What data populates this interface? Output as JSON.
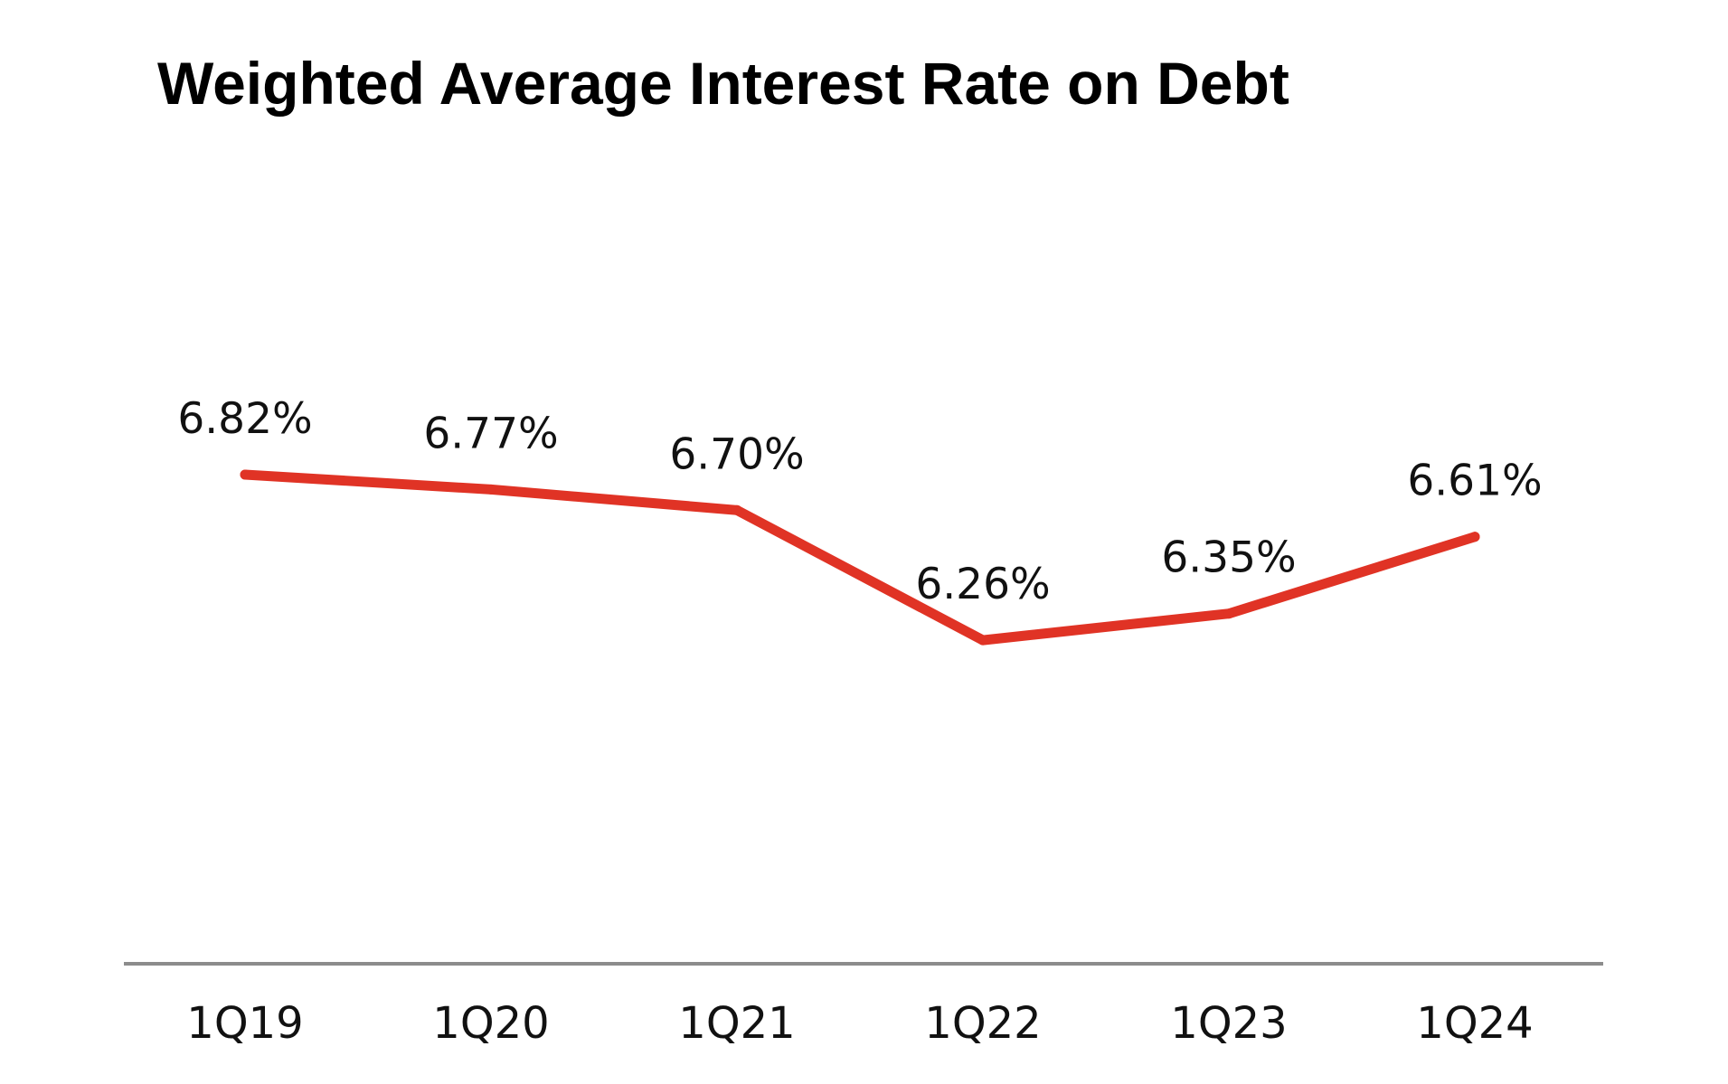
{
  "chart_data": {
    "type": "line",
    "title": "Weighted Average Interest Rate on Debt",
    "xlabel": "",
    "ylabel": "",
    "categories": [
      "1Q19",
      "1Q20",
      "1Q21",
      "1Q22",
      "1Q23",
      "1Q24"
    ],
    "series": [
      {
        "name": "Weighted Average Interest Rate on Debt",
        "values": [
          6.82,
          6.77,
          6.7,
          6.26,
          6.35,
          6.61
        ],
        "labels": [
          "6.82%",
          "6.77%",
          "6.70%",
          "6.26%",
          "6.35%",
          "6.61%"
        ],
        "color": "#e03325"
      }
    ],
    "ylim": [
      5.0,
      7.9
    ],
    "grid": false,
    "legend": "none",
    "axis_color": "#8c8c8c"
  }
}
